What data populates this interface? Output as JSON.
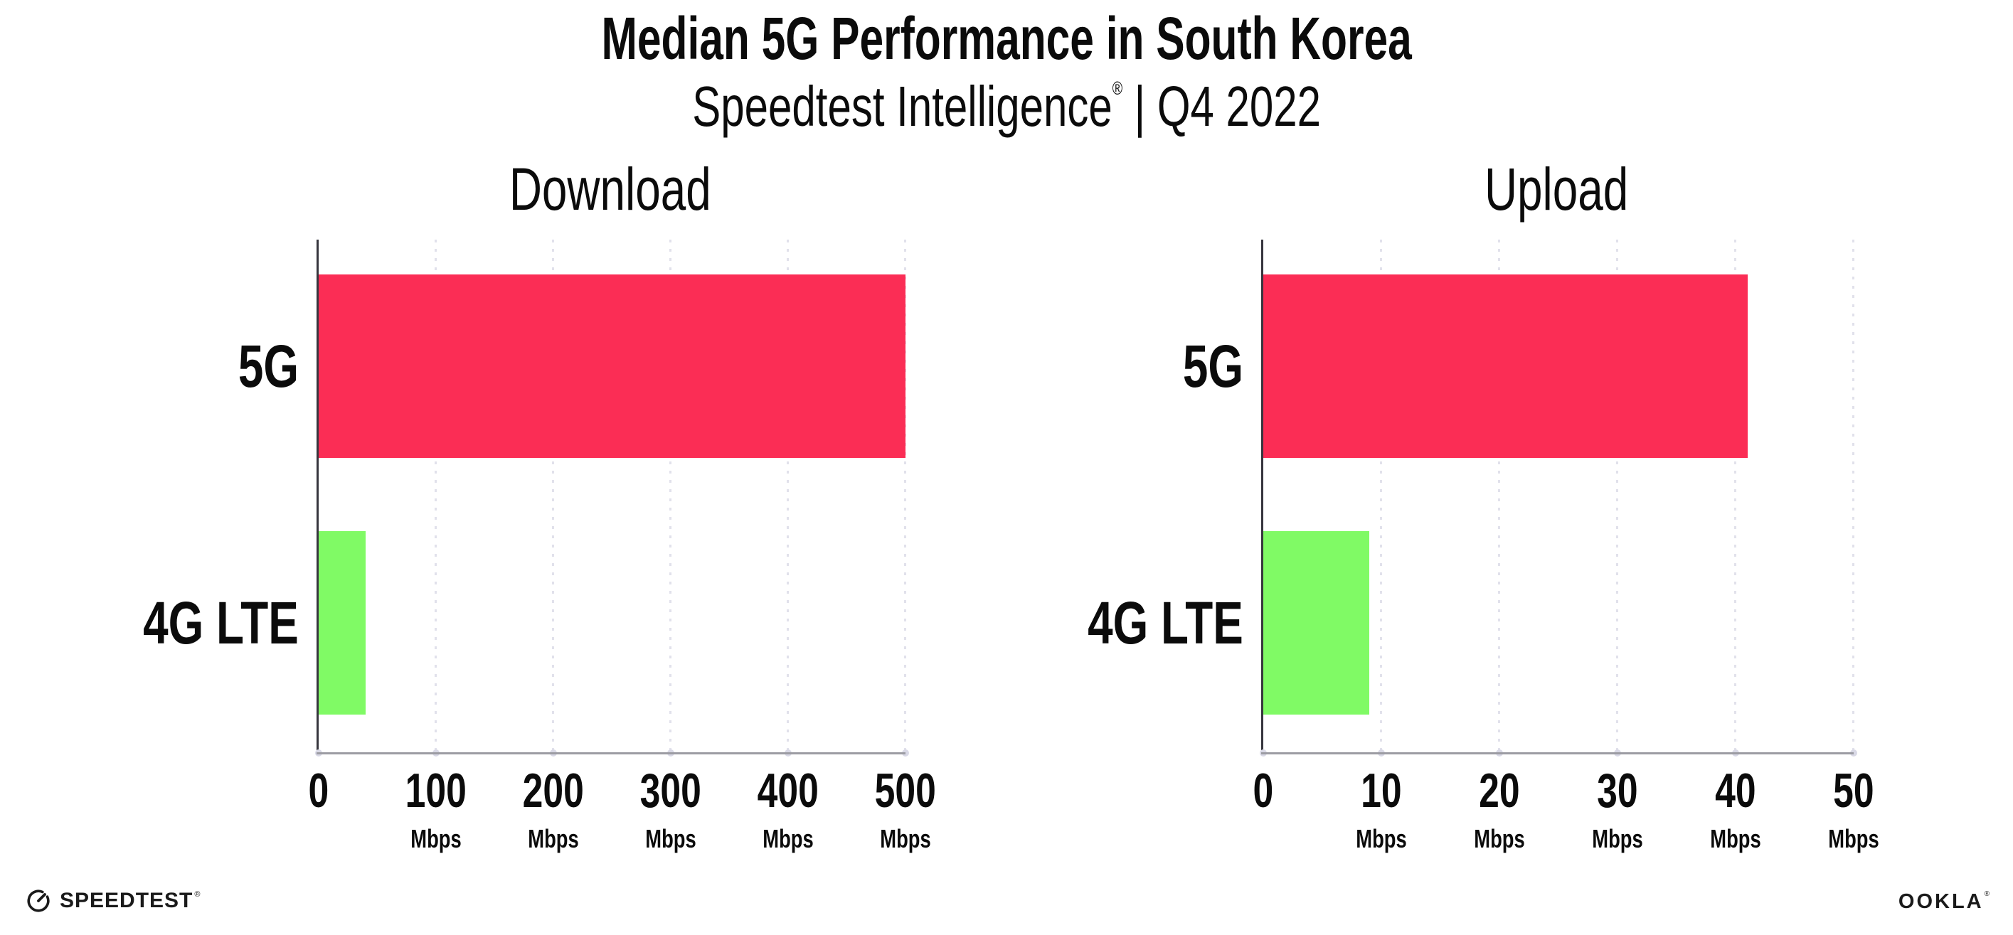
{
  "header": {
    "title": "Median 5G Performance in South Korea",
    "subtitle_brand": "Speedtest Intelligence",
    "subtitle_reg": "®",
    "subtitle_rest": "| Q4 2022"
  },
  "chart_data": [
    {
      "type": "bar",
      "orientation": "horizontal",
      "title": "Download",
      "categories": [
        "5G",
        "4G LTE"
      ],
      "values": [
        500,
        40
      ],
      "unit": "Mbps",
      "xlabel": "",
      "ylabel": "",
      "xlim": [
        0,
        500
      ],
      "xticks": [
        0,
        100,
        200,
        300,
        400,
        500
      ],
      "bar_colors": [
        "#FB2D55",
        "#80FA65"
      ],
      "grid": "vertical-dotted",
      "legend": "none"
    },
    {
      "type": "bar",
      "orientation": "horizontal",
      "title": "Upload",
      "categories": [
        "5G",
        "4G LTE"
      ],
      "values": [
        41,
        9
      ],
      "unit": "Mbps",
      "xlabel": "",
      "ylabel": "",
      "xlim": [
        0,
        50
      ],
      "xticks": [
        0,
        10,
        20,
        30,
        40,
        50
      ],
      "bar_colors": [
        "#FB2D55",
        "#80FA65"
      ],
      "grid": "vertical-dotted",
      "legend": "none"
    }
  ],
  "footer": {
    "speedtest": "SPEEDTEST",
    "ookla": "OOKLA",
    "reg": "®"
  },
  "colors": {
    "bar_5g": "#FB2D55",
    "bar_4g_lte": "#80FA65",
    "axis_spine": "#37363E",
    "axis_line": "#9C9CA3",
    "gridline": "#E1E1EB",
    "text": "#0B0B0B",
    "background": "#FFFFFF"
  }
}
